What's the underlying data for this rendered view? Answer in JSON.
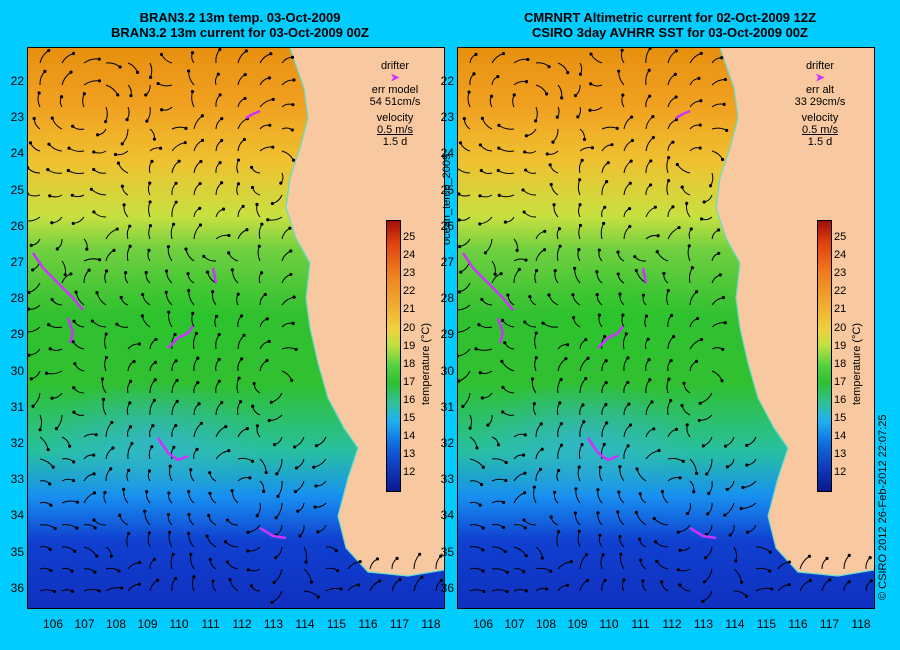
{
  "titles": {
    "left_line1": "BRAN3.2 13m temp. 03-Oct-2009",
    "left_line2": "BRAN3.2 13m current for 03-Oct-2009 00Z",
    "right_line1": "CMRNRT Altimetric current for 02-Oct-2009 12Z",
    "right_line2": "CSIRO 3day AVHRR SST for 03-Oct-2009 00Z"
  },
  "side_label": "ocean_temp_2009",
  "copyright": "© CSIRO 2012   26-Feb-2012 22:07:25",
  "y_ticks": [
    "22",
    "23",
    "24",
    "25",
    "26",
    "27",
    "28",
    "29",
    "30",
    "31",
    "32",
    "33",
    "34",
    "35",
    "36"
  ],
  "x_ticks": [
    "106",
    "107",
    "108",
    "109",
    "110",
    "111",
    "112",
    "113",
    "114",
    "115",
    "116",
    "117",
    "118"
  ],
  "left_legend": {
    "drifter": "drifter",
    "err_label": "err model",
    "err_value": "54 51cm/s",
    "velocity": "velocity",
    "speed": "0.5 m/s",
    "duration": "1.5 d"
  },
  "right_legend": {
    "drifter": "drifter",
    "err_label": "err alt",
    "err_value": "33 29cm/s",
    "velocity": "velocity",
    "speed": "0.5 m/s",
    "duration": "1.5 d"
  },
  "colorbar": {
    "ticks": [
      "25",
      "24",
      "23",
      "22",
      "21",
      "20",
      "19",
      "18",
      "17",
      "16",
      "15",
      "14",
      "13",
      "12"
    ],
    "label": "temperature (°C)"
  },
  "colors": {
    "background": "#00ccff",
    "land": "#f8c8a0",
    "drifter": "#cc33ff",
    "coastline": "#66ddcc",
    "vectors": "#000000"
  }
}
